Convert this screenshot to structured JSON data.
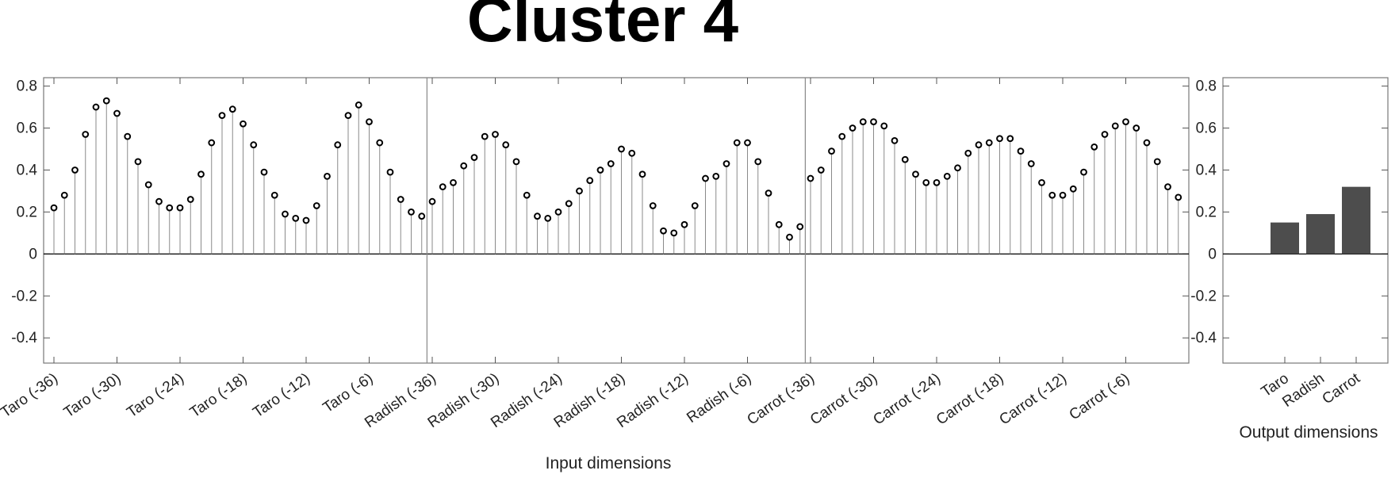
{
  "title": "Cluster 4",
  "colors": {
    "bar": "#4d4d4d",
    "marker": "#000000",
    "stem": "#8a8a8a"
  },
  "chart_data": [
    {
      "type": "stem",
      "xlabel": "Input dimensions",
      "ylabel": "",
      "ylim": [
        -0.52,
        0.84
      ],
      "yticks": [
        -0.4,
        -0.2,
        0,
        0.2,
        0.4,
        0.6,
        0.8
      ],
      "ytick_labels": [
        "-0.4",
        "-0.2",
        "0",
        "0.2",
        "0.4",
        "0.6",
        "0.8"
      ],
      "xtick_labels": [
        "Taro (-36)",
        "Taro (-30)",
        "Taro (-24)",
        "Taro (-18)",
        "Taro (-12)",
        "Taro (-6)",
        "Radish (-36)",
        "Radish (-30)",
        "Radish (-24)",
        "Radish (-18)",
        "Radish (-12)",
        "Radish (-6)",
        "Carrot (-36)",
        "Carrot (-30)",
        "Carrot (-24)",
        "Carrot (-18)",
        "Carrot (-12)",
        "Carrot (-6)"
      ],
      "groups": [
        "Taro",
        "Radish",
        "Carrot"
      ],
      "values": [
        0.22,
        0.28,
        0.4,
        0.57,
        0.7,
        0.73,
        0.67,
        0.56,
        0.44,
        0.33,
        0.25,
        0.22,
        0.22,
        0.26,
        0.38,
        0.53,
        0.66,
        0.69,
        0.62,
        0.52,
        0.39,
        0.28,
        0.19,
        0.17,
        0.16,
        0.23,
        0.37,
        0.52,
        0.66,
        0.71,
        0.63,
        0.53,
        0.39,
        0.26,
        0.2,
        0.18,
        0.25,
        0.32,
        0.34,
        0.42,
        0.46,
        0.56,
        0.57,
        0.52,
        0.44,
        0.28,
        0.18,
        0.17,
        0.2,
        0.24,
        0.3,
        0.35,
        0.4,
        0.43,
        0.5,
        0.48,
        0.38,
        0.23,
        0.11,
        0.1,
        0.14,
        0.23,
        0.36,
        0.37,
        0.43,
        0.53,
        0.53,
        0.44,
        0.29,
        0.14,
        0.08,
        0.13,
        0.36,
        0.4,
        0.49,
        0.56,
        0.6,
        0.63,
        0.63,
        0.61,
        0.54,
        0.45,
        0.38,
        0.34,
        0.34,
        0.37,
        0.41,
        0.48,
        0.52,
        0.53,
        0.55,
        0.55,
        0.49,
        0.43,
        0.34,
        0.28,
        0.28,
        0.31,
        0.39,
        0.51,
        0.57,
        0.61,
        0.63,
        0.6,
        0.53,
        0.44,
        0.32,
        0.27
      ]
    },
    {
      "type": "bar",
      "xlabel": "Output dimensions",
      "ylabel": "",
      "ylim": [
        -0.52,
        0.84
      ],
      "yticks": [
        -0.4,
        -0.2,
        0,
        0.2,
        0.4,
        0.6,
        0.8
      ],
      "ytick_labels": [
        "-0.4",
        "-0.2",
        "0",
        "0.2",
        "0.4",
        "0.6",
        "0.8"
      ],
      "categories": [
        "Taro",
        "Radish",
        "Carrot"
      ],
      "values": [
        0.15,
        0.19,
        0.32
      ]
    }
  ]
}
